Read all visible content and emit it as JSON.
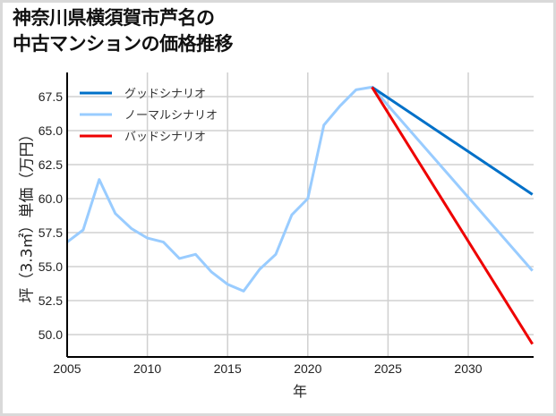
{
  "title_line1": "神奈川県横須賀市芦名の",
  "title_line2": "中古マンションの価格推移",
  "chart_data": {
    "type": "line",
    "title": "神奈川県横須賀市芦名の中古マンションの価格推移",
    "xlabel": "年",
    "ylabel": "坪（3.3㎡）単価（万円）",
    "xlim": [
      2005,
      2034
    ],
    "ylim": [
      48.5,
      69.3
    ],
    "xticks": [
      2005,
      2010,
      2015,
      2020,
      2025,
      2030
    ],
    "yticks": [
      50.0,
      52.5,
      55.0,
      57.5,
      60.0,
      62.5,
      65.0,
      67.5
    ],
    "grid": true,
    "legend_position": "upper left",
    "series": [
      {
        "name": "グッドシナリオ",
        "color": "#0070c8",
        "x": [
          2024,
          2034
        ],
        "values": [
          68.2,
          60.3
        ]
      },
      {
        "name": "ノーマルシナリオ",
        "color": "#99ccff",
        "x": [
          2005,
          2006,
          2007,
          2008,
          2009,
          2010,
          2011,
          2012,
          2013,
          2014,
          2015,
          2016,
          2017,
          2018,
          2019,
          2020,
          2021,
          2022,
          2023,
          2024,
          2034
        ],
        "values": [
          56.8,
          57.7,
          61.4,
          58.9,
          57.8,
          57.1,
          56.8,
          55.6,
          55.9,
          54.6,
          53.7,
          53.2,
          54.8,
          55.9,
          58.8,
          60.0,
          65.4,
          66.8,
          68.0,
          68.2,
          54.7
        ]
      },
      {
        "name": "バッドシナリオ",
        "color": "#ee0000",
        "x": [
          2024,
          2034
        ],
        "values": [
          68.2,
          49.3
        ]
      }
    ]
  }
}
